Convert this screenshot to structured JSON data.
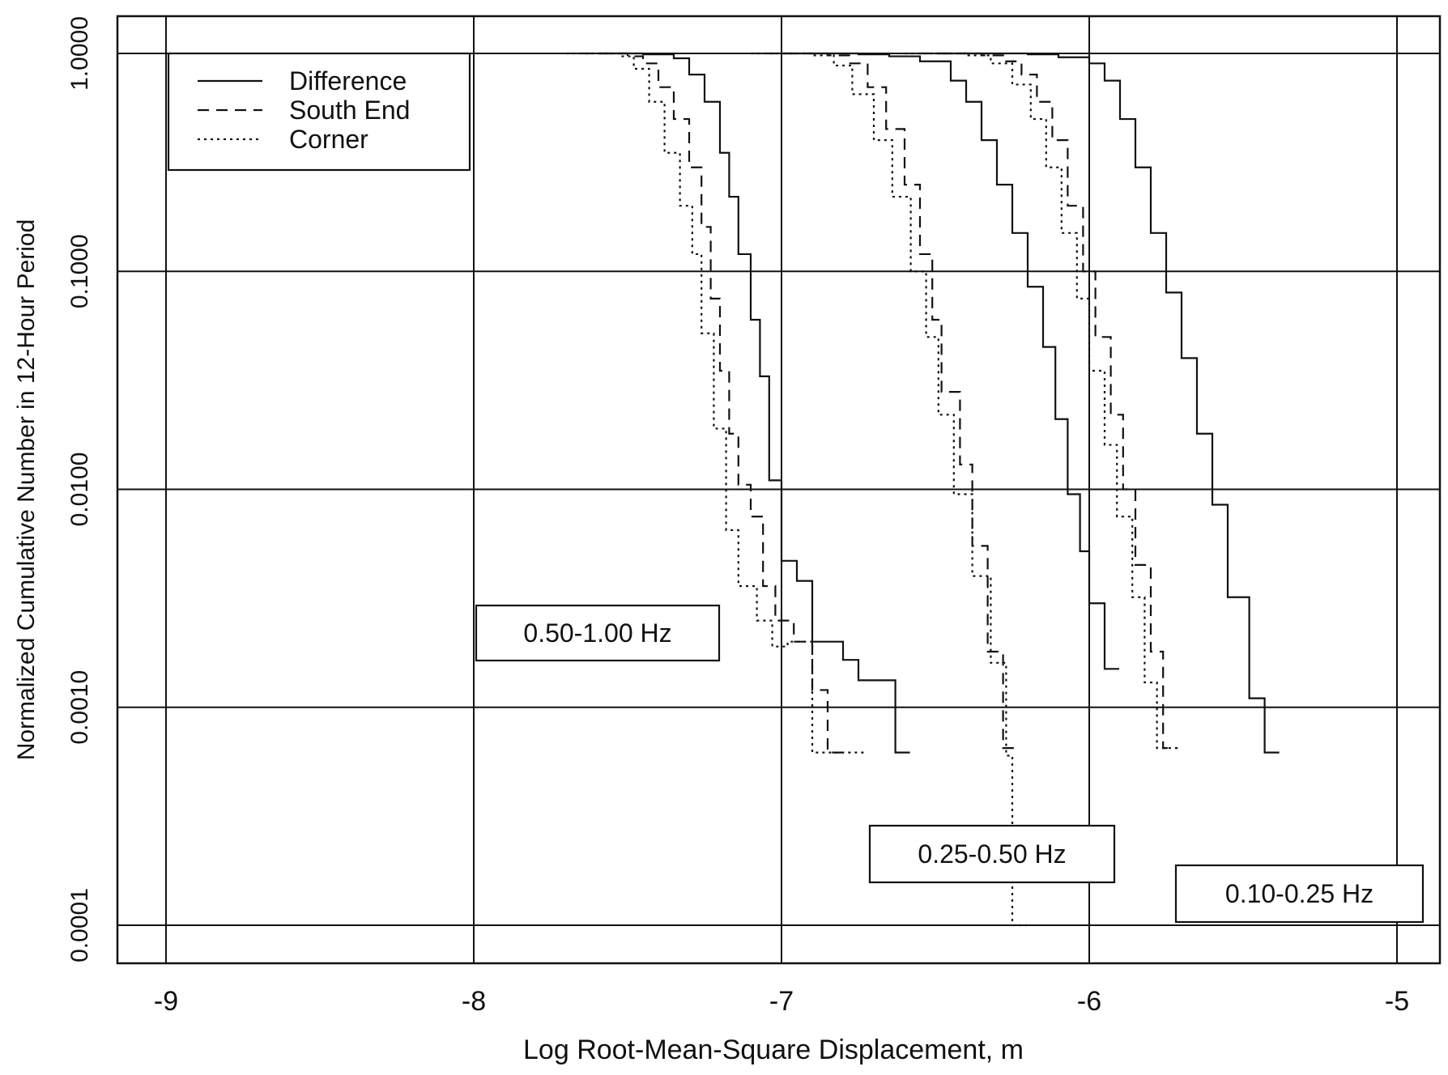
{
  "chart_data": {
    "type": "line",
    "subtype": "step cumulative distribution",
    "xlabel": "Log Root-Mean-Square Displacement, m",
    "ylabel": "Normalized Cumulative Number in 12-Hour Period",
    "xlim": [
      -9.15,
      -4.85
    ],
    "ylim": [
      6e-05,
      2.0
    ],
    "yscale": "log",
    "grid": true,
    "x_ticks": [
      -9,
      -8,
      -7,
      -6,
      -5
    ],
    "x_tick_labels": [
      "-9",
      "-8",
      "-7",
      "-6",
      "-5"
    ],
    "y_ticks": [
      0.0001,
      0.001,
      0.01,
      0.1,
      1.0
    ],
    "y_tick_labels": [
      "0.0001",
      "0.0010",
      "0.0100",
      "0.1000",
      "1.0000"
    ],
    "legend": {
      "placement": "top-left",
      "entries": [
        {
          "label": "Difference",
          "style": "solid"
        },
        {
          "label": "South End",
          "style": "dashed"
        },
        {
          "label": "Corner",
          "style": "dotted"
        }
      ]
    },
    "annotations": [
      "0.50-1.00 Hz",
      "0.25-0.50 Hz",
      "0.10-0.25 Hz"
    ],
    "bands": [
      {
        "band": "0.50-1.00 Hz",
        "series": [
          {
            "name": "Difference",
            "style": "solid",
            "steps": [
              [
                -7.6,
                1.0
              ],
              [
                -7.45,
                0.99
              ],
              [
                -7.35,
                0.95
              ],
              [
                -7.3,
                0.8
              ],
              [
                -7.25,
                0.6
              ],
              [
                -7.2,
                0.35
              ],
              [
                -7.17,
                0.22
              ],
              [
                -7.14,
                0.12
              ],
              [
                -7.1,
                0.06
              ],
              [
                -7.07,
                0.033
              ],
              [
                -7.04,
                0.011
              ],
              [
                -7.0,
                0.0047
              ],
              [
                -6.95,
                0.0038
              ],
              [
                -6.9,
                0.002
              ],
              [
                -6.8,
                0.00165
              ],
              [
                -6.75,
                0.00133
              ],
              [
                -6.63,
                0.00062
              ]
            ]
          },
          {
            "name": "South End",
            "style": "dashed",
            "steps": [
              [
                -7.65,
                1.0
              ],
              [
                -7.5,
                0.97
              ],
              [
                -7.45,
                0.9
              ],
              [
                -7.4,
                0.7
              ],
              [
                -7.35,
                0.5
              ],
              [
                -7.3,
                0.3
              ],
              [
                -7.26,
                0.16
              ],
              [
                -7.23,
                0.075
              ],
              [
                -7.2,
                0.035
              ],
              [
                -7.17,
                0.018
              ],
              [
                -7.14,
                0.0105
              ],
              [
                -7.1,
                0.0075
              ],
              [
                -7.06,
                0.0036
              ],
              [
                -7.02,
                0.0025
              ],
              [
                -6.96,
                0.002
              ],
              [
                -6.9,
                0.0012
              ],
              [
                -6.85,
                0.00062
              ]
            ]
          },
          {
            "name": "Corner",
            "style": "dotted",
            "steps": [
              [
                -7.7,
                1.0
              ],
              [
                -7.52,
                0.97
              ],
              [
                -7.48,
                0.85
              ],
              [
                -7.43,
                0.6
              ],
              [
                -7.38,
                0.35
              ],
              [
                -7.33,
                0.2
              ],
              [
                -7.29,
                0.12
              ],
              [
                -7.26,
                0.052
              ],
              [
                -7.22,
                0.019
              ],
              [
                -7.18,
                0.0065
              ],
              [
                -7.14,
                0.0036
              ],
              [
                -7.08,
                0.0025
              ],
              [
                -7.03,
                0.0019
              ],
              [
                -6.98,
                0.002
              ],
              [
                -6.9,
                0.00062
              ],
              [
                -6.78,
                0.00062
              ]
            ]
          }
        ]
      },
      {
        "band": "0.25-0.50 Hz",
        "series": [
          {
            "name": "Difference",
            "style": "solid",
            "steps": [
              [
                -7.0,
                1.0
              ],
              [
                -6.75,
                0.99
              ],
              [
                -6.65,
                0.97
              ],
              [
                -6.55,
                0.92
              ],
              [
                -6.45,
                0.75
              ],
              [
                -6.4,
                0.6
              ],
              [
                -6.35,
                0.4
              ],
              [
                -6.3,
                0.25
              ],
              [
                -6.25,
                0.15
              ],
              [
                -6.2,
                0.085
              ],
              [
                -6.15,
                0.045
              ],
              [
                -6.11,
                0.021
              ],
              [
                -6.07,
                0.0095
              ],
              [
                -6.03,
                0.0052
              ],
              [
                -6.0,
                0.003
              ],
              [
                -5.95,
                0.0015
              ]
            ]
          },
          {
            "name": "South End",
            "style": "dashed",
            "steps": [
              [
                -7.05,
                1.0
              ],
              [
                -6.85,
                0.98
              ],
              [
                -6.78,
                0.9
              ],
              [
                -6.72,
                0.7
              ],
              [
                -6.66,
                0.45
              ],
              [
                -6.6,
                0.25
              ],
              [
                -6.55,
                0.12
              ],
              [
                -6.51,
                0.06
              ],
              [
                -6.48,
                0.028
              ],
              [
                -6.42,
                0.013
              ],
              [
                -6.38,
                0.0055
              ],
              [
                -6.33,
                0.0018
              ],
              [
                -6.28,
                0.00065
              ]
            ]
          },
          {
            "name": "Corner",
            "style": "dotted",
            "steps": [
              [
                -7.1,
                1.0
              ],
              [
                -6.9,
                0.98
              ],
              [
                -6.83,
                0.88
              ],
              [
                -6.77,
                0.65
              ],
              [
                -6.7,
                0.4
              ],
              [
                -6.64,
                0.22
              ],
              [
                -6.58,
                0.1
              ],
              [
                -6.53,
                0.05
              ],
              [
                -6.49,
                0.022
              ],
              [
                -6.44,
                0.0095
              ],
              [
                -6.38,
                0.004
              ],
              [
                -6.32,
                0.0016
              ],
              [
                -6.27,
                0.0006
              ],
              [
                -6.25,
                0.0001
              ]
            ]
          }
        ]
      },
      {
        "band": "0.10-0.25 Hz",
        "series": [
          {
            "name": "Difference",
            "style": "solid",
            "steps": [
              [
                -6.5,
                1.0
              ],
              [
                -6.2,
                0.99
              ],
              [
                -6.1,
                0.96
              ],
              [
                -6.0,
                0.9
              ],
              [
                -5.95,
                0.75
              ],
              [
                -5.9,
                0.5
              ],
              [
                -5.85,
                0.3
              ],
              [
                -5.8,
                0.15
              ],
              [
                -5.75,
                0.08
              ],
              [
                -5.7,
                0.04
              ],
              [
                -5.65,
                0.018
              ],
              [
                -5.6,
                0.0085
              ],
              [
                -5.55,
                0.0032
              ],
              [
                -5.48,
                0.0011
              ],
              [
                -5.43,
                0.00062
              ]
            ]
          },
          {
            "name": "South End",
            "style": "dashed",
            "steps": [
              [
                -6.55,
                1.0
              ],
              [
                -6.35,
                0.98
              ],
              [
                -6.28,
                0.92
              ],
              [
                -6.22,
                0.8
              ],
              [
                -6.17,
                0.6
              ],
              [
                -6.12,
                0.4
              ],
              [
                -6.07,
                0.2
              ],
              [
                -6.02,
                0.1
              ],
              [
                -5.98,
                0.05
              ],
              [
                -5.93,
                0.022
              ],
              [
                -5.89,
                0.01
              ],
              [
                -5.85,
                0.0045
              ],
              [
                -5.8,
                0.0018
              ],
              [
                -5.76,
                0.00065
              ]
            ]
          },
          {
            "name": "Corner",
            "style": "dotted",
            "steps": [
              [
                -6.6,
                1.0
              ],
              [
                -6.4,
                0.98
              ],
              [
                -6.32,
                0.9
              ],
              [
                -6.25,
                0.72
              ],
              [
                -6.19,
                0.5
              ],
              [
                -6.14,
                0.3
              ],
              [
                -6.09,
                0.15
              ],
              [
                -6.04,
                0.075
              ],
              [
                -6.0,
                0.035
              ],
              [
                -5.95,
                0.016
              ],
              [
                -5.91,
                0.0075
              ],
              [
                -5.86,
                0.0032
              ],
              [
                -5.82,
                0.0013
              ],
              [
                -5.78,
                0.00065
              ]
            ]
          }
        ]
      }
    ]
  }
}
